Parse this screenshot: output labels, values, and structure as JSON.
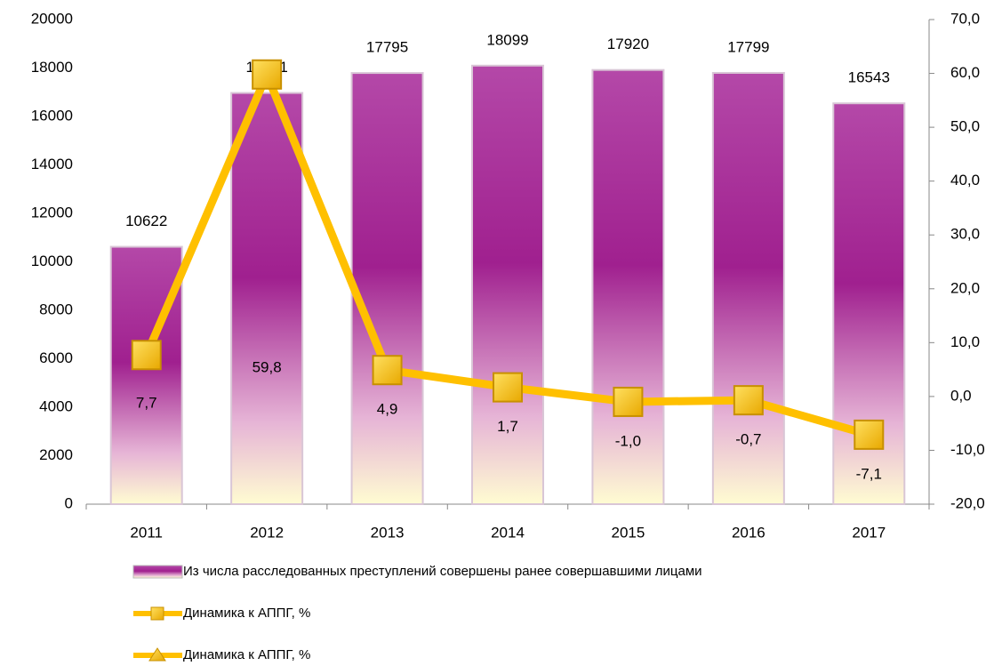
{
  "chart_data": {
    "type": "bar-line",
    "categories": [
      "2011",
      "2012",
      "2013",
      "2014",
      "2015",
      "2016",
      "2017"
    ],
    "series": [
      {
        "name": "Из числа расследованных преступлений совершены ранее совершавшими лицами",
        "color": "#a0208f",
        "type": "bar",
        "values": [
          10622,
          16971,
          17795,
          18099,
          17920,
          17799,
          16543
        ]
      },
      {
        "name": "Динамика к АППГ, %",
        "color": "#ffc000",
        "type": "line",
        "axis": "y2",
        "marker": "square",
        "values": [
          7.7,
          59.8,
          4.9,
          1.7,
          -1.0,
          -0.7,
          -7.1
        ],
        "value_labels": [
          "7,7",
          "59,8",
          "4,9",
          "1,7",
          "-1,0",
          "-0,7",
          "-7,1"
        ]
      },
      {
        "name": "Динамика к АППГ, %",
        "color": "#ffc000",
        "type": "line",
        "axis": "y2",
        "marker": "triangle"
      }
    ],
    "ylim": [
      0,
      20000
    ],
    "yticks": [
      0,
      2000,
      4000,
      6000,
      8000,
      10000,
      12000,
      14000,
      16000,
      18000,
      20000
    ],
    "y2lim": [
      -20,
      70
    ],
    "y2ticks": [
      {
        "value": -20,
        "label": "-20,0"
      },
      {
        "value": -10,
        "label": "-10,0"
      },
      {
        "value": 0,
        "label": "0,0"
      },
      {
        "value": 10,
        "label": "10,0"
      },
      {
        "value": 20,
        "label": "20,0"
      },
      {
        "value": 30,
        "label": "30,0"
      },
      {
        "value": 40,
        "label": "40,0"
      },
      {
        "value": 50,
        "label": "50,0"
      },
      {
        "value": 60,
        "label": "60,0"
      },
      {
        "value": 70,
        "label": "70,0"
      }
    ],
    "legend": "bottom"
  }
}
